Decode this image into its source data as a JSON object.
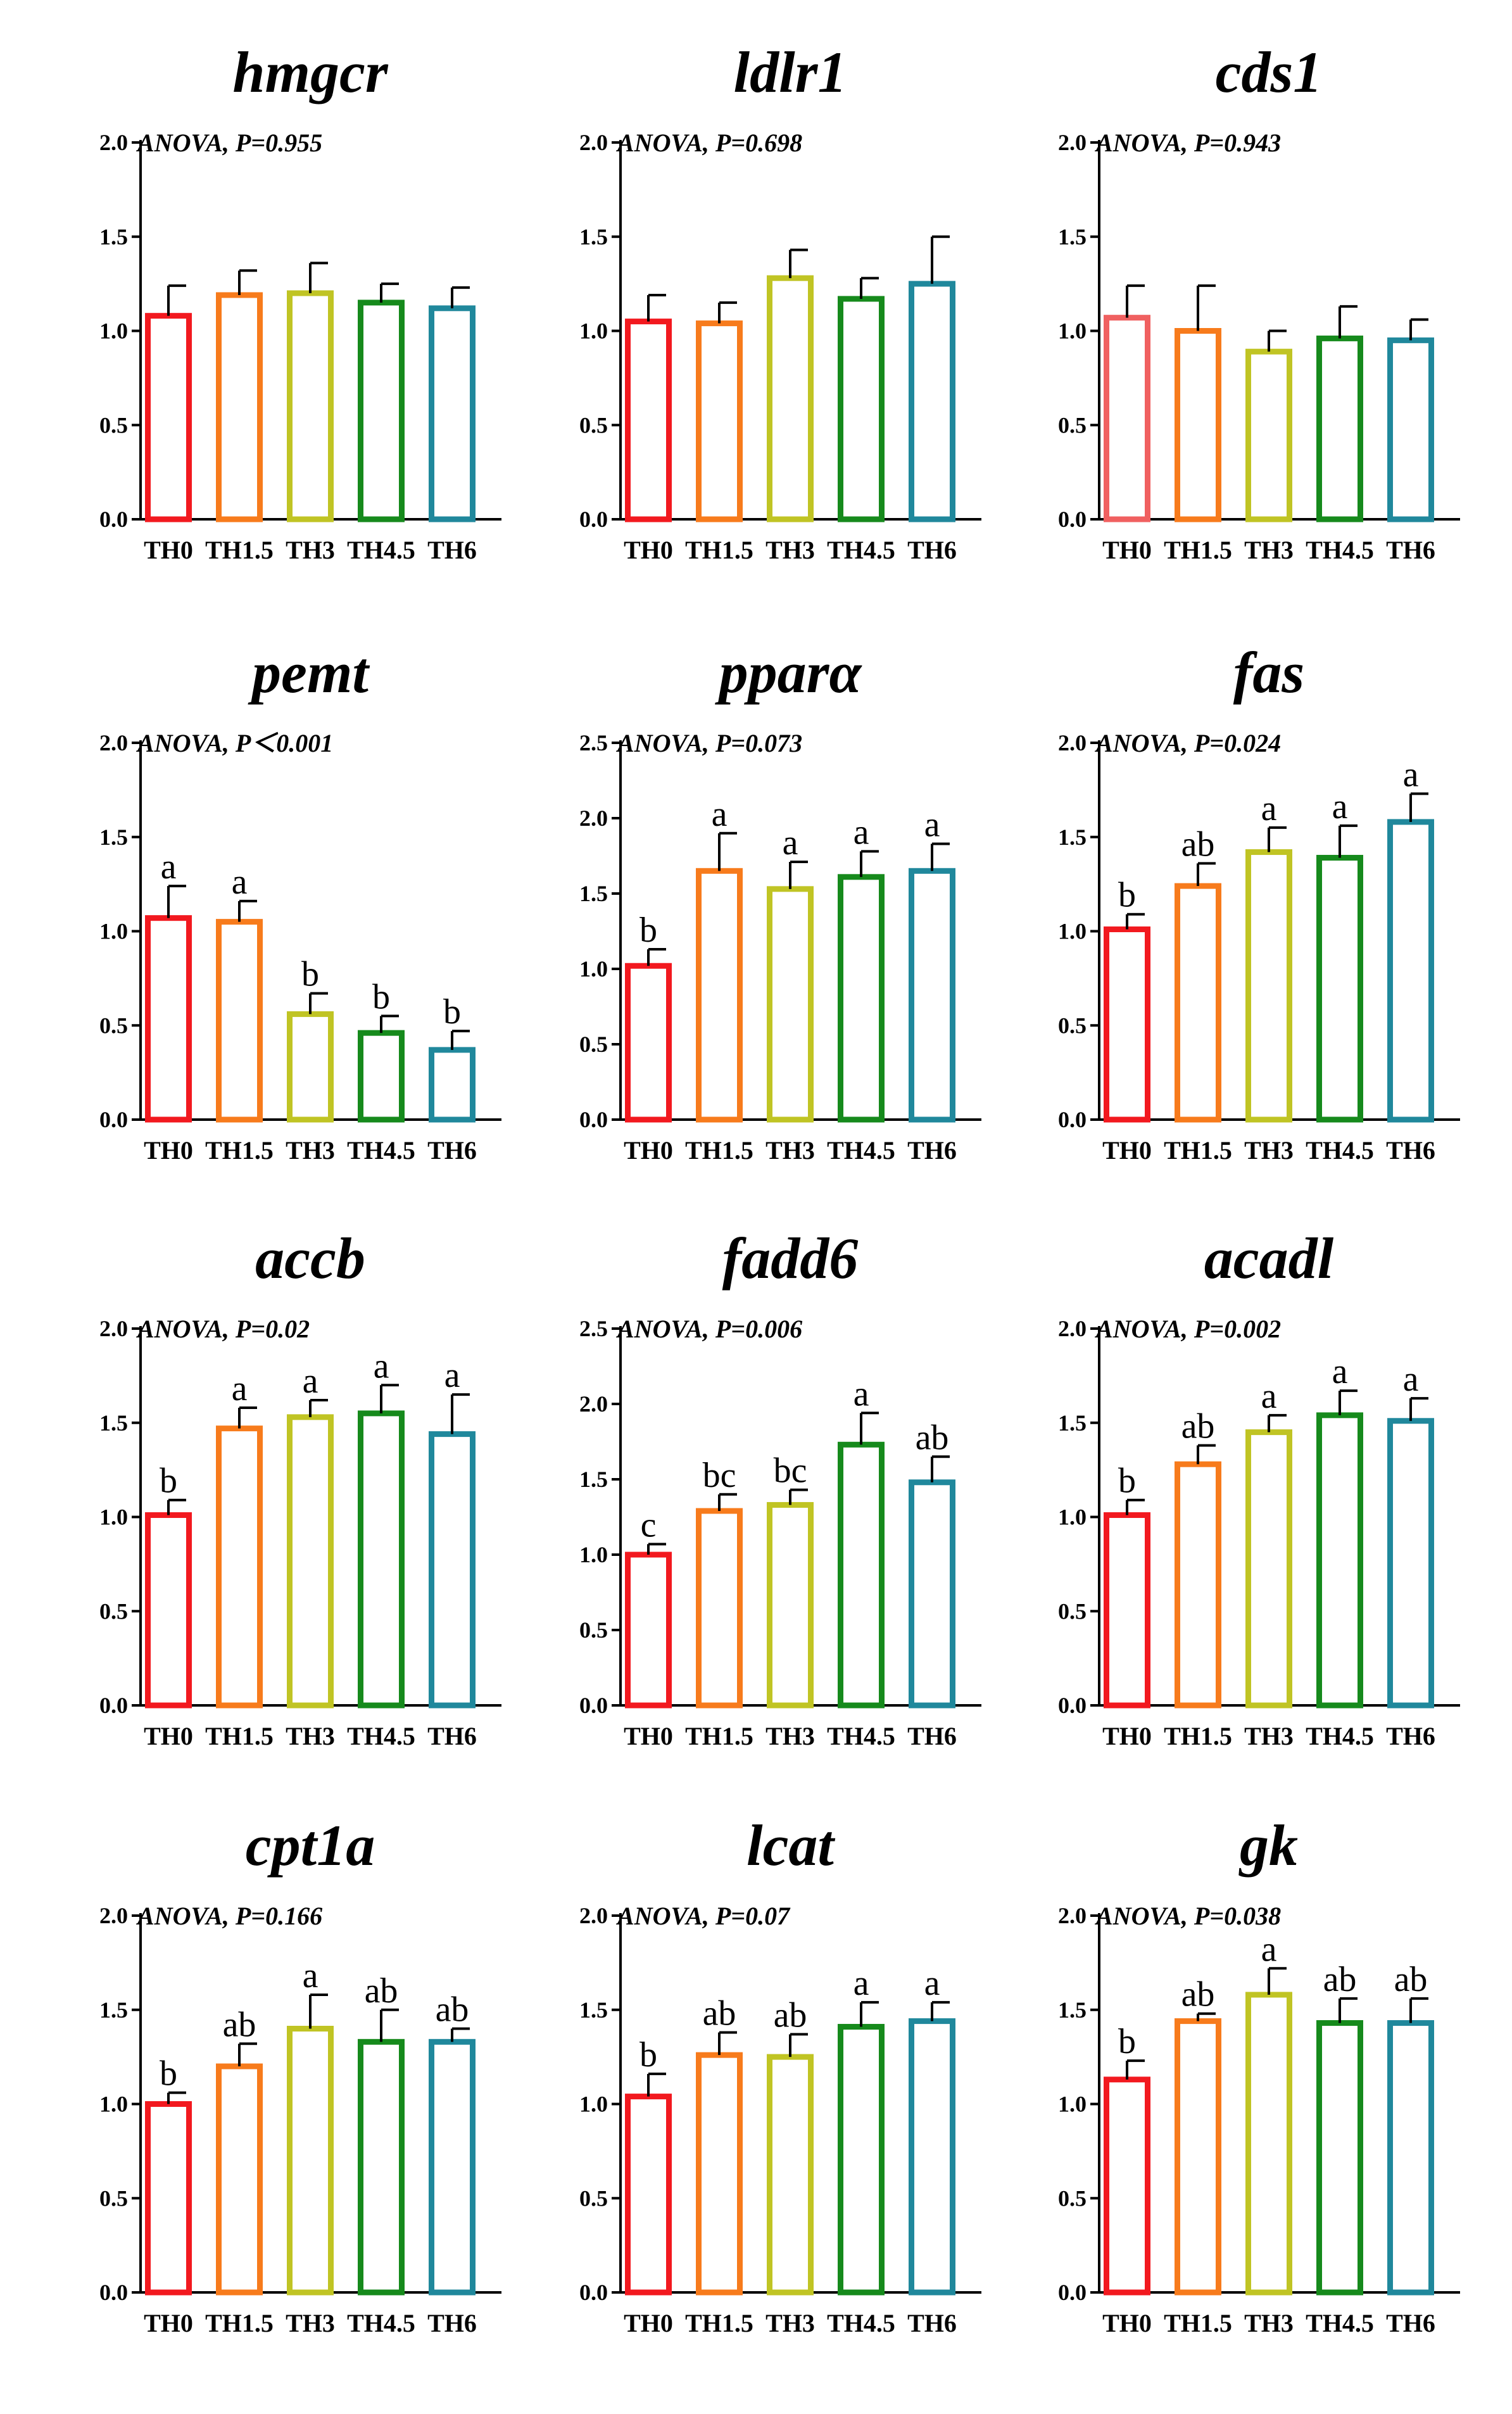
{
  "colors": {
    "TH0": "#f2191f",
    "TH1.5": "#f77b1c",
    "TH3": "#c0c424",
    "TH4.5": "#168a1c",
    "TH6": "#20889c",
    "axis": "#000000"
  },
  "chart_data": [
    {
      "type": "bar",
      "title": "hmgcr",
      "annotation": "ANOVA, P=0.955",
      "categories": [
        "TH0",
        "TH1.5",
        "TH3",
        "TH4.5",
        "TH6"
      ],
      "values": [
        1.08,
        1.19,
        1.2,
        1.15,
        1.12
      ],
      "errors": [
        0.16,
        0.13,
        0.16,
        0.1,
        0.11
      ],
      "letters": [],
      "ylim": [
        0,
        2.0
      ],
      "yticks": [
        "0.0",
        "0.5",
        "1.0",
        "1.5",
        "2.0"
      ],
      "bar_colors": [
        "#f2191f",
        "#f77b1c",
        "#c0c424",
        "#168a1c",
        "#20889c"
      ]
    },
    {
      "type": "bar",
      "title": "ldlr1",
      "annotation": "ANOVA, P=0.698",
      "categories": [
        "TH0",
        "TH1.5",
        "TH3",
        "TH4.5",
        "TH6"
      ],
      "values": [
        1.05,
        1.04,
        1.28,
        1.17,
        1.25
      ],
      "errors": [
        0.14,
        0.11,
        0.15,
        0.11,
        0.25
      ],
      "letters": [],
      "ylim": [
        0,
        2.0
      ],
      "yticks": [
        "0.0",
        "0.5",
        "1.0",
        "1.5",
        "2.0"
      ],
      "bar_colors": [
        "#f2191f",
        "#f77b1c",
        "#c0c424",
        "#168a1c",
        "#20889c"
      ]
    },
    {
      "type": "bar",
      "title": "cds1",
      "annotation": "ANOVA, P=0.943",
      "categories": [
        "TH0",
        "TH1.5",
        "TH3",
        "TH4.5",
        "TH6"
      ],
      "values": [
        1.07,
        1.0,
        0.89,
        0.96,
        0.95
      ],
      "errors": [
        0.17,
        0.24,
        0.11,
        0.17,
        0.11
      ],
      "letters": [],
      "ylim": [
        0,
        2.0
      ],
      "yticks": [
        "0.0",
        "0.5",
        "1.0",
        "1.5",
        "2.0"
      ],
      "bar_colors": [
        "#f06060",
        "#f77b1c",
        "#c0c424",
        "#168a1c",
        "#20889c"
      ]
    },
    {
      "type": "bar",
      "title": "pemt",
      "annotation": "ANOVA, P＜0.001",
      "categories": [
        "TH0",
        "TH1.5",
        "TH3",
        "TH4.5",
        "TH6"
      ],
      "values": [
        1.07,
        1.05,
        0.56,
        0.46,
        0.37
      ],
      "errors": [
        0.17,
        0.11,
        0.11,
        0.09,
        0.1
      ],
      "letters": [
        "a",
        "a",
        "b",
        "b",
        "b"
      ],
      "ylim": [
        0,
        2.0
      ],
      "yticks": [
        "0.0",
        "0.5",
        "1.0",
        "1.5",
        "2.0"
      ],
      "bar_colors": [
        "#f2191f",
        "#f77b1c",
        "#c0c424",
        "#168a1c",
        "#20889c"
      ]
    },
    {
      "type": "bar",
      "title": "pparα",
      "annotation": "ANOVA, P=0.073",
      "categories": [
        "TH0",
        "TH1.5",
        "TH3",
        "TH4.5",
        "TH6"
      ],
      "values": [
        1.02,
        1.65,
        1.53,
        1.61,
        1.65
      ],
      "errors": [
        0.11,
        0.25,
        0.18,
        0.17,
        0.18
      ],
      "letters": [
        "b",
        "a",
        "a",
        "a",
        "a"
      ],
      "ylim": [
        0,
        2.5
      ],
      "yticks": [
        "0.0",
        "0.5",
        "1.0",
        "1.5",
        "2.0",
        "2.5"
      ],
      "bar_colors": [
        "#f2191f",
        "#f77b1c",
        "#c0c424",
        "#168a1c",
        "#20889c"
      ]
    },
    {
      "type": "bar",
      "title": "fas",
      "annotation": "ANOVA, P=0.024",
      "categories": [
        "TH0",
        "TH1.5",
        "TH3",
        "TH4.5",
        "TH6"
      ],
      "values": [
        1.01,
        1.24,
        1.42,
        1.39,
        1.58
      ],
      "errors": [
        0.08,
        0.12,
        0.13,
        0.17,
        0.15
      ],
      "letters": [
        "b",
        "ab",
        "a",
        "a",
        "a"
      ],
      "ylim": [
        0,
        2.0
      ],
      "yticks": [
        "0.0",
        "0.5",
        "1.0",
        "1.5",
        "2.0"
      ],
      "bar_colors": [
        "#f2191f",
        "#f77b1c",
        "#c0c424",
        "#168a1c",
        "#20889c"
      ]
    },
    {
      "type": "bar",
      "title": "accb",
      "annotation": "ANOVA, P=0.02",
      "categories": [
        "TH0",
        "TH1.5",
        "TH3",
        "TH4.5",
        "TH6"
      ],
      "values": [
        1.01,
        1.47,
        1.53,
        1.55,
        1.44
      ],
      "errors": [
        0.08,
        0.11,
        0.09,
        0.15,
        0.21
      ],
      "letters": [
        "b",
        "a",
        "a",
        "a",
        "a"
      ],
      "ylim": [
        0,
        2.0
      ],
      "yticks": [
        "0.0",
        "0.5",
        "1.0",
        "1.5",
        "2.0"
      ],
      "bar_colors": [
        "#f2191f",
        "#f77b1c",
        "#c0c424",
        "#168a1c",
        "#20889c"
      ]
    },
    {
      "type": "bar",
      "title": "fadd6",
      "annotation": "ANOVA, P=0.006",
      "categories": [
        "TH0",
        "TH1.5",
        "TH3",
        "TH4.5",
        "TH6"
      ],
      "values": [
        1.0,
        1.29,
        1.33,
        1.73,
        1.48
      ],
      "errors": [
        0.07,
        0.11,
        0.1,
        0.21,
        0.17
      ],
      "letters": [
        "c",
        "bc",
        "bc",
        "a",
        "ab"
      ],
      "ylim": [
        0,
        2.5
      ],
      "yticks": [
        "0.0",
        "0.5",
        "1.0",
        "1.5",
        "2.0",
        "2.5"
      ],
      "bar_colors": [
        "#f2191f",
        "#f77b1c",
        "#c0c424",
        "#168a1c",
        "#20889c"
      ]
    },
    {
      "type": "bar",
      "title": "acadl",
      "annotation": "ANOVA, P=0.002",
      "categories": [
        "TH0",
        "TH1.5",
        "TH3",
        "TH4.5",
        "TH6"
      ],
      "values": [
        1.01,
        1.28,
        1.45,
        1.54,
        1.51
      ],
      "errors": [
        0.08,
        0.1,
        0.09,
        0.13,
        0.12
      ],
      "letters": [
        "b",
        "ab",
        "a",
        "a",
        "a"
      ],
      "ylim": [
        0,
        2.0
      ],
      "yticks": [
        "0.0",
        "0.5",
        "1.0",
        "1.5",
        "2.0"
      ],
      "bar_colors": [
        "#f2191f",
        "#f77b1c",
        "#c0c424",
        "#168a1c",
        "#20889c"
      ]
    },
    {
      "type": "bar",
      "title": "cpt1a",
      "annotation": "ANOVA, P=0.166",
      "categories": [
        "TH0",
        "TH1.5",
        "TH3",
        "TH4.5",
        "TH6"
      ],
      "values": [
        1.0,
        1.2,
        1.4,
        1.33,
        1.33
      ],
      "errors": [
        0.06,
        0.12,
        0.18,
        0.17,
        0.07
      ],
      "letters": [
        "b",
        "ab",
        "a",
        "ab",
        "ab"
      ],
      "ylim": [
        0,
        2.0
      ],
      "yticks": [
        "0.0",
        "0.5",
        "1.0",
        "1.5",
        "2.0"
      ],
      "bar_colors": [
        "#f2191f",
        "#f77b1c",
        "#c0c424",
        "#168a1c",
        "#20889c"
      ]
    },
    {
      "type": "bar",
      "title": "lcat",
      "annotation": "ANOVA, P=0.07",
      "categories": [
        "TH0",
        "TH1.5",
        "TH3",
        "TH4.5",
        "TH6"
      ],
      "values": [
        1.04,
        1.26,
        1.25,
        1.41,
        1.44
      ],
      "errors": [
        0.12,
        0.12,
        0.12,
        0.13,
        0.1
      ],
      "letters": [
        "b",
        "ab",
        "ab",
        "a",
        "a"
      ],
      "ylim": [
        0,
        2.0
      ],
      "yticks": [
        "0.0",
        "0.5",
        "1.0",
        "1.5",
        "2.0"
      ],
      "bar_colors": [
        "#f2191f",
        "#f77b1c",
        "#c0c424",
        "#168a1c",
        "#20889c"
      ]
    },
    {
      "type": "bar",
      "title": "gk",
      "annotation": "ANOVA, P=0.038",
      "categories": [
        "TH0",
        "TH1.5",
        "TH3",
        "TH4.5",
        "TH6"
      ],
      "values": [
        1.13,
        1.44,
        1.58,
        1.43,
        1.43
      ],
      "errors": [
        0.1,
        0.04,
        0.14,
        0.13,
        0.13
      ],
      "letters": [
        "b",
        "ab",
        "a",
        "ab",
        "ab"
      ],
      "ylim": [
        0,
        2.0
      ],
      "yticks": [
        "0.0",
        "0.5",
        "1.0",
        "1.5",
        "2.0"
      ],
      "bar_colors": [
        "#f2191f",
        "#f77b1c",
        "#c0c424",
        "#168a1c",
        "#20889c"
      ]
    }
  ]
}
